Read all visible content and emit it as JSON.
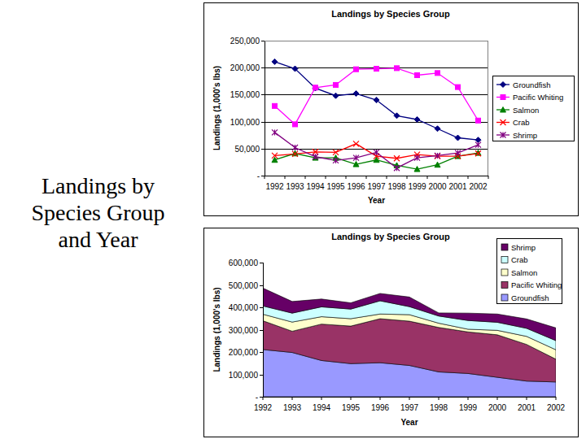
{
  "slide": {
    "title": "Landings by Species Group and Year"
  },
  "chart_data": [
    {
      "type": "line",
      "title": "Landings by Species Group",
      "x_label": "Year",
      "y_label": "Landings (1,000's lbs)",
      "categories": [
        "1992",
        "1993",
        "1994",
        "1995",
        "1996",
        "1997",
        "1998",
        "1999",
        "2000",
        "2001",
        "2002"
      ],
      "series": [
        {
          "name": "Groundfish",
          "color": "#000080",
          "marker": "diamond",
          "values": [
            211000,
            198000,
            162000,
            148000,
            152000,
            140000,
            111000,
            104000,
            87000,
            70000,
            66000
          ]
        },
        {
          "name": "Pacific Whiting",
          "color": "#ff00ff",
          "marker": "square",
          "values": [
            129000,
            95000,
            163000,
            168000,
            197000,
            198000,
            199000,
            186000,
            190000,
            164000,
            102000
          ]
        },
        {
          "name": "Salmon",
          "color": "#008000",
          "marker": "triangle",
          "values": [
            29000,
            41000,
            33000,
            33000,
            21000,
            29000,
            19000,
            12000,
            20000,
            36000,
            42000
          ]
        },
        {
          "name": "Crab",
          "color": "#ff0000",
          "marker": "x",
          "values": [
            37000,
            40000,
            44000,
            43000,
            59000,
            36000,
            32000,
            39000,
            36000,
            36000,
            41000
          ]
        },
        {
          "name": "Shrimp",
          "color": "#800080",
          "marker": "star",
          "values": [
            80000,
            52000,
            35000,
            28000,
            33000,
            43000,
            14000,
            33000,
            37000,
            42000,
            57000
          ]
        }
      ],
      "ylim": [
        0,
        250000
      ],
      "yticks": [
        {
          "value": 0,
          "label": "-"
        },
        {
          "value": 50000,
          "label": "50,000"
        },
        {
          "value": 100000,
          "label": "100,000"
        },
        {
          "value": 150000,
          "label": "150,000"
        },
        {
          "value": 200000,
          "label": "200,000"
        },
        {
          "value": 250000,
          "label": "250,000"
        }
      ],
      "grid": true,
      "legend": "right"
    },
    {
      "type": "area",
      "stacked": true,
      "title": "Landings by Species Group",
      "x_label": "Year",
      "y_label": "Landings (1,000's lbs)",
      "categories": [
        "1992",
        "1993",
        "1994",
        "1995",
        "1996",
        "1997",
        "1998",
        "1999",
        "2000",
        "2001",
        "2002"
      ],
      "series": [
        {
          "name": "Groundfish",
          "color": "#9999ff",
          "values": [
            211000,
            198000,
            162000,
            148000,
            152000,
            140000,
            111000,
            104000,
            87000,
            70000,
            66000
          ]
        },
        {
          "name": "Pacific Whiting",
          "color": "#993366",
          "values": [
            129000,
            95000,
            163000,
            168000,
            197000,
            198000,
            199000,
            186000,
            190000,
            164000,
            102000
          ]
        },
        {
          "name": "Salmon",
          "color": "#ffffcc",
          "values": [
            29000,
            41000,
            33000,
            33000,
            21000,
            29000,
            19000,
            12000,
            20000,
            36000,
            42000
          ]
        },
        {
          "name": "Crab",
          "color": "#ccffff",
          "values": [
            37000,
            40000,
            44000,
            43000,
            59000,
            36000,
            32000,
            39000,
            36000,
            36000,
            41000
          ]
        },
        {
          "name": "Shrimp",
          "color": "#660066",
          "values": [
            80000,
            52000,
            35000,
            28000,
            33000,
            43000,
            14000,
            33000,
            37000,
            42000,
            57000
          ]
        }
      ],
      "ylim": [
        0,
        600000
      ],
      "yticks": [
        {
          "value": 0,
          "label": "-"
        },
        {
          "value": 100000,
          "label": "100,000"
        },
        {
          "value": 200000,
          "label": "200,000"
        },
        {
          "value": 300000,
          "label": "300,000"
        },
        {
          "value": 400000,
          "label": "400,000"
        },
        {
          "value": 500000,
          "label": "500,000"
        },
        {
          "value": 600000,
          "label": "600,000"
        }
      ],
      "grid": false,
      "legend": "top right"
    }
  ]
}
